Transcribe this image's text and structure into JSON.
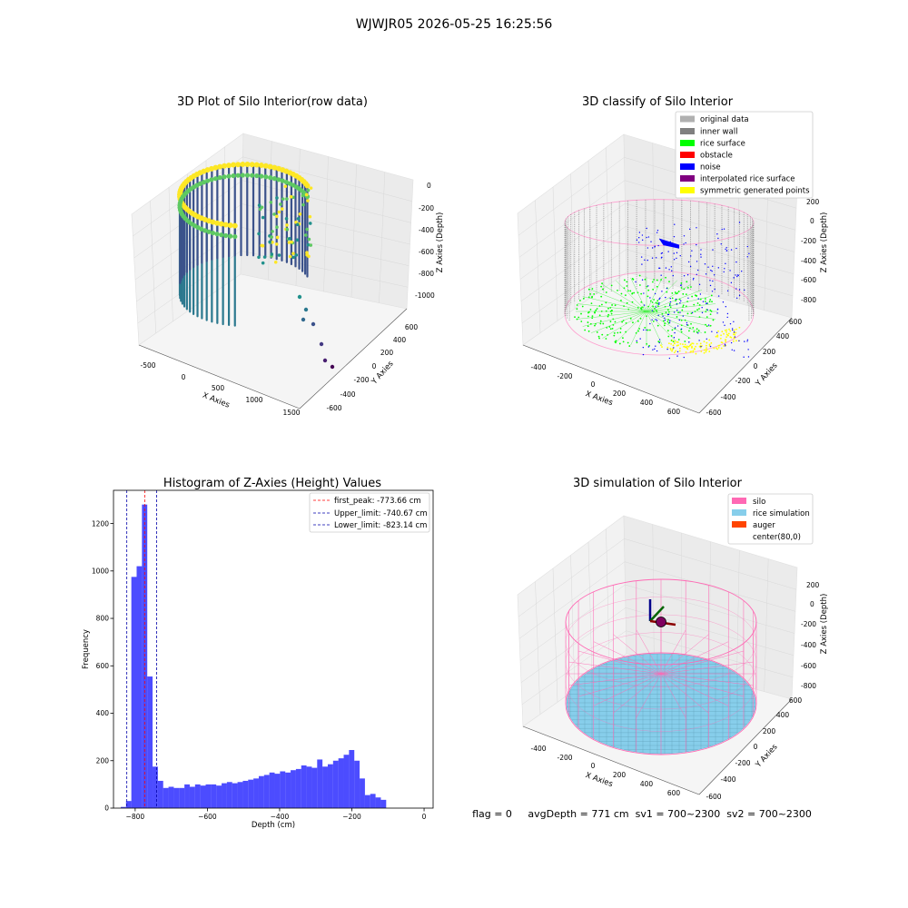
{
  "suptitle": "WJWJR05 2026-05-25 16:25:56",
  "footer": "flag = 0     avgDepth = 771 cm  sv1 = 700~2300  sv2 = 700~2300",
  "colors": {
    "silo": "#ff69b4",
    "rice_simulation": "#87ceeb",
    "auger": "#ff4500",
    "hist_bar": "#0000ff",
    "original_data": "#b0b0b0",
    "inner_wall": "#808080",
    "rice_surface": "#00ff00",
    "obstacle": "#ff0000",
    "noise": "#0000ff",
    "interpolated_rice_surface": "#800080",
    "symmetric_generated_points": "#ffff00"
  },
  "chart_data": [
    {
      "type": "scatter",
      "title": "3D Plot of Silo Interior(row data)",
      "xlabel": "X Axies",
      "ylabel": "Y Axies",
      "zlabel": "Z Axies (Depth)",
      "x_ticks": [
        "-500",
        "0",
        "500",
        "1000",
        "1500"
      ],
      "y_ticks": [
        "-600",
        "-400",
        "-200",
        "0",
        "200",
        "400",
        "600"
      ],
      "z_ticks": [
        "0",
        "-200",
        "-400",
        "-600",
        "-800",
        "-1000"
      ],
      "colormap": "viridis",
      "grid": true
    },
    {
      "type": "scatter",
      "title": "3D classify of Silo Interior",
      "xlabel": "X Axies",
      "ylabel": "Y Axies",
      "zlabel": "Z Axies (Depth)",
      "x_ticks": [
        "-400",
        "-200",
        "0",
        "200",
        "400",
        "600"
      ],
      "y_ticks": [
        "-600",
        "-400",
        "-200",
        "0",
        "200",
        "400",
        "600"
      ],
      "z_ticks": [
        "200",
        "0",
        "-200",
        "-400",
        "-600",
        "-800"
      ],
      "legend": [
        "original data",
        "inner wall",
        "rice surface",
        "obstacle",
        "noise",
        "interpolated rice surface",
        "symmetric generated points"
      ],
      "legend_position": "top-right",
      "grid": true
    },
    {
      "type": "bar",
      "title": "Histogram of Z-Axies (Height) Values",
      "xlabel": "Depth (cm)",
      "ylabel": "Frequency",
      "xlim": [
        -860,
        25
      ],
      "ylim": [
        0,
        1340
      ],
      "x_ticks": [
        -800,
        -600,
        -400,
        -200,
        0
      ],
      "x_tick_labels": [
        "−800",
        "−600",
        "−400",
        "−200",
        "0"
      ],
      "y_ticks": [
        0,
        200,
        400,
        600,
        800,
        1000,
        1200
      ],
      "bin_width": 14.7,
      "bin_starts": [
        -840,
        -825.3,
        -810.6,
        -795.9,
        -781.2,
        -766.5,
        -751.8,
        -737.1,
        -722.4,
        -707.7,
        -693,
        -678.3,
        -663.6,
        -648.9,
        -634.2,
        -619.5,
        -604.8,
        -590.1,
        -575.4,
        -560.7,
        -546,
        -531.3,
        -516.6,
        -501.9,
        -487.2,
        -472.5,
        -457.8,
        -443.1,
        -428.4,
        -413.7,
        -399,
        -384.3,
        -369.6,
        -354.9,
        -340.2,
        -325.5,
        -310.8,
        -296.1,
        -281.4,
        -266.7,
        -252,
        -237.3,
        -222.6,
        -207.9,
        -193.2,
        -178.5,
        -163.8,
        -149.1,
        -134.4,
        -119.7,
        -105,
        -90.3,
        -75.6,
        -60.9,
        -46.2,
        -31.5
      ],
      "values": [
        5,
        30,
        975,
        1020,
        1280,
        555,
        175,
        115,
        85,
        90,
        85,
        85,
        100,
        90,
        100,
        95,
        100,
        100,
        95,
        105,
        110,
        105,
        110,
        115,
        120,
        125,
        135,
        140,
        150,
        145,
        155,
        150,
        160,
        165,
        180,
        175,
        170,
        205,
        175,
        185,
        200,
        210,
        225,
        245,
        200,
        125,
        55,
        60,
        45,
        35,
        0,
        0,
        0,
        0,
        0,
        0
      ],
      "vlines": [
        {
          "label": "first_peak: -773.66 cm",
          "x": -773.66,
          "color": "#ff0000"
        },
        {
          "label": "Upper_limit: -740.67 cm",
          "x": -740.67,
          "color": "#0000aa"
        },
        {
          "label": "Lower_limit: -823.14 cm",
          "x": -823.14,
          "color": "#0000aa"
        }
      ],
      "legend_position": "top-right",
      "grid": false
    },
    {
      "type": "scatter",
      "title": "3D simulation of Silo Interior",
      "xlabel": "X Axies",
      "ylabel": "Y Axies",
      "zlabel": "Z Axies (Depth)",
      "x_ticks": [
        "-400",
        "-200",
        "0",
        "200",
        "400",
        "600"
      ],
      "y_ticks": [
        "-600",
        "-400",
        "-200",
        "0",
        "200",
        "400",
        "600"
      ],
      "z_ticks": [
        "200",
        "0",
        "-200",
        "-400",
        "-600",
        "-800"
      ],
      "legend": [
        "silo",
        "rice simulation",
        "auger",
        "center(80,0)"
      ],
      "legend_position": "top-right",
      "grid": true
    }
  ]
}
